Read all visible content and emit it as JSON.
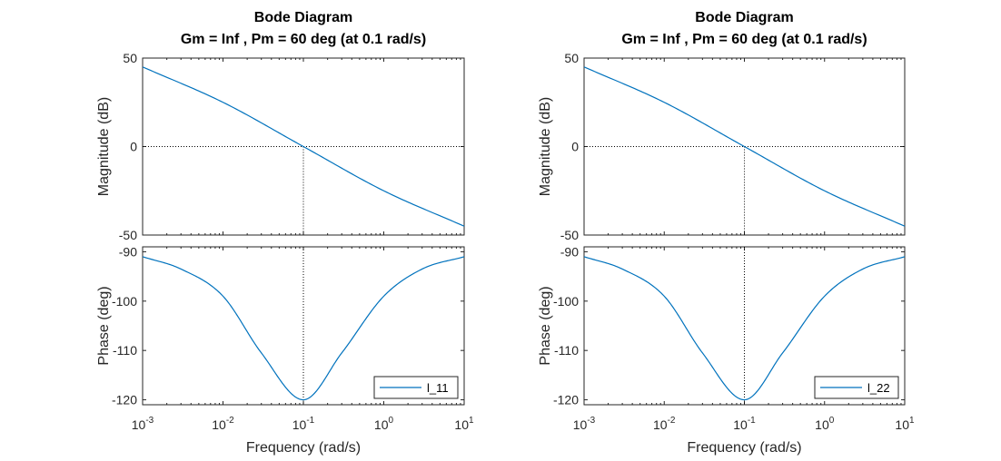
{
  "chart_data": [
    {
      "type": "line",
      "title": "Bode Diagram",
      "subtitle": "Gm = Inf ,  Pm = 60 deg (at 0.1 rad/s)",
      "xlabel": "Frequency  (rad/s)",
      "x_scale": "log",
      "xlim": [
        0.001,
        10
      ],
      "x_tick_labels": [
        {
          "base": "10",
          "exp": "-3"
        },
        {
          "base": "10",
          "exp": "-2"
        },
        {
          "base": "10",
          "exp": "-1"
        },
        {
          "base": "10",
          "exp": "0"
        },
        {
          "base": "10",
          "exp": "1"
        }
      ],
      "crossover_frequency": 0.1,
      "legend": {
        "label": "l_11",
        "placement": "bottom-right"
      },
      "color": "#0072BD",
      "magnitude": {
        "ylabel": "Magnitude (dB)",
        "ylim": [
          -50,
          50
        ],
        "y_ticks": [
          "50",
          "0",
          "-50"
        ],
        "x": [
          0.001,
          0.01,
          0.1,
          1,
          10
        ],
        "y": [
          45,
          25,
          0,
          -25,
          -45
        ]
      },
      "phase": {
        "ylabel": "Phase (deg)",
        "ylim": [
          -121,
          -89
        ],
        "y_ticks": [
          "-90",
          "-100",
          "-110",
          "-120"
        ],
        "x": [
          0.001,
          0.003,
          0.01,
          0.03,
          0.1,
          0.3,
          1,
          3,
          10
        ],
        "y": [
          -91,
          -93.5,
          -99,
          -110.5,
          -120,
          -110.5,
          -99,
          -93.5,
          -91
        ]
      }
    },
    {
      "type": "line",
      "title": "Bode Diagram",
      "subtitle": "Gm = Inf ,  Pm = 60 deg (at 0.1 rad/s)",
      "xlabel": "Frequency  (rad/s)",
      "x_scale": "log",
      "xlim": [
        0.001,
        10
      ],
      "x_tick_labels": [
        {
          "base": "10",
          "exp": "-3"
        },
        {
          "base": "10",
          "exp": "-2"
        },
        {
          "base": "10",
          "exp": "-1"
        },
        {
          "base": "10",
          "exp": "0"
        },
        {
          "base": "10",
          "exp": "1"
        }
      ],
      "crossover_frequency": 0.1,
      "legend": {
        "label": "l_22",
        "placement": "bottom-right"
      },
      "color": "#0072BD",
      "magnitude": {
        "ylabel": "Magnitude (dB)",
        "ylim": [
          -50,
          50
        ],
        "y_ticks": [
          "50",
          "0",
          "-50"
        ],
        "x": [
          0.001,
          0.01,
          0.1,
          1,
          10
        ],
        "y": [
          45,
          25,
          0,
          -25,
          -45
        ]
      },
      "phase": {
        "ylabel": "Phase (deg)",
        "ylim": [
          -121,
          -89
        ],
        "y_ticks": [
          "-90",
          "-100",
          "-110",
          "-120"
        ],
        "x": [
          0.001,
          0.003,
          0.01,
          0.03,
          0.1,
          0.3,
          1,
          3,
          10
        ],
        "y": [
          -91,
          -93.5,
          -99,
          -110.5,
          -120,
          -110.5,
          -99,
          -93.5,
          -91
        ]
      }
    }
  ]
}
